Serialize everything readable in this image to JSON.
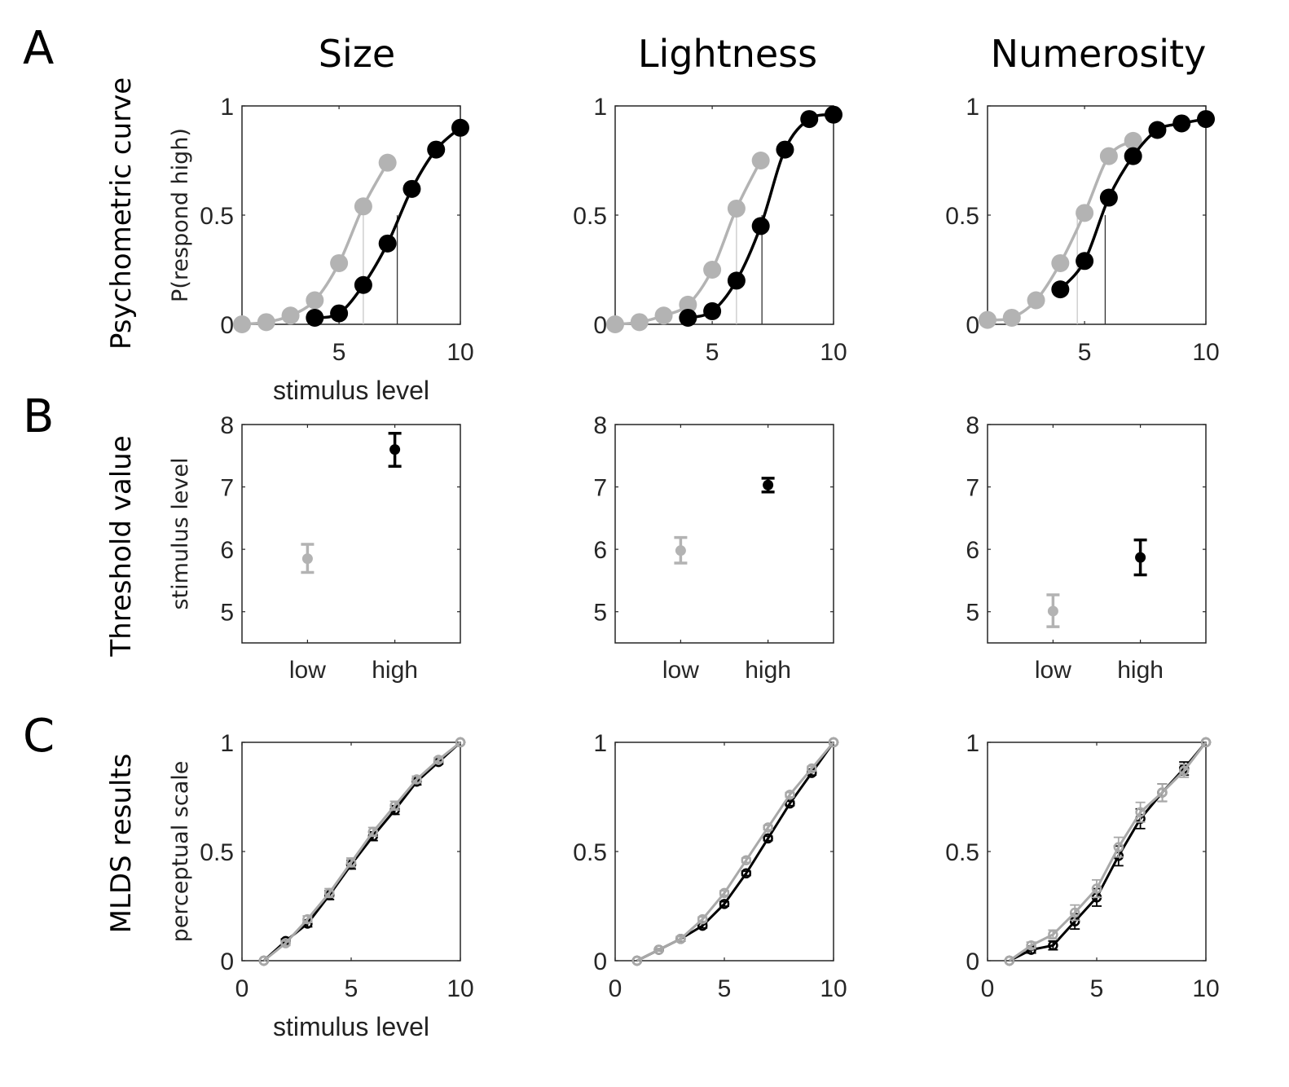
{
  "panel_letters": [
    "A",
    "B",
    "C"
  ],
  "column_titles": [
    "Size",
    "Lightness",
    "Numerosity"
  ],
  "row_titles": [
    "Psychometric curve",
    "Threshold value",
    "MLDS results"
  ],
  "colors": {
    "low": "#b3b3b3",
    "high": "#000000"
  },
  "chart_data": [
    {
      "type": "line",
      "row": "A",
      "title": "Size",
      "xlabel": "stimulus level",
      "ylabel": "P(respond high)",
      "xlim": [
        1,
        10
      ],
      "ylim": [
        0,
        1
      ],
      "xticks": [
        5,
        10
      ],
      "yticks": [
        0,
        0.5,
        1
      ],
      "xtick_labels": [
        "5",
        "10"
      ],
      "ytick_labels": [
        "0",
        "0.5",
        "1"
      ],
      "series": [
        {
          "name": "low",
          "x": [
            1,
            2,
            3,
            4,
            5,
            6,
            7
          ],
          "y": [
            0.0,
            0.01,
            0.04,
            0.11,
            0.28,
            0.54,
            0.74
          ],
          "threshold": 6.0
        },
        {
          "name": "high",
          "x": [
            4,
            5,
            6,
            7,
            8,
            9,
            10
          ],
          "y": [
            0.03,
            0.05,
            0.18,
            0.37,
            0.62,
            0.8,
            0.9
          ],
          "threshold": 7.4
        }
      ]
    },
    {
      "type": "line",
      "row": "A",
      "title": "Lightness",
      "xlabel": "",
      "ylabel": "",
      "xlim": [
        1,
        10
      ],
      "ylim": [
        0,
        1
      ],
      "xticks": [
        5,
        10
      ],
      "yticks": [
        0,
        0.5,
        1
      ],
      "xtick_labels": [
        "5",
        "10"
      ],
      "ytick_labels": [
        "0",
        "0.5",
        "1"
      ],
      "series": [
        {
          "name": "low",
          "x": [
            1,
            2,
            3,
            4,
            5,
            6,
            7
          ],
          "y": [
            0.0,
            0.01,
            0.04,
            0.09,
            0.25,
            0.53,
            0.75
          ],
          "threshold": 6.0
        },
        {
          "name": "high",
          "x": [
            4,
            5,
            6,
            7,
            8,
            9,
            10
          ],
          "y": [
            0.03,
            0.06,
            0.2,
            0.45,
            0.8,
            0.94,
            0.96
          ],
          "threshold": 7.05
        }
      ]
    },
    {
      "type": "line",
      "row": "A",
      "title": "Numerosity",
      "xlabel": "",
      "ylabel": "",
      "xlim": [
        1,
        10
      ],
      "ylim": [
        0,
        1
      ],
      "xticks": [
        5,
        10
      ],
      "yticks": [
        0,
        0.5,
        1
      ],
      "xtick_labels": [
        "5",
        "10"
      ],
      "ytick_labels": [
        "0",
        "0.5",
        "1"
      ],
      "series": [
        {
          "name": "low",
          "x": [
            1,
            2,
            3,
            4,
            5,
            6,
            7
          ],
          "y": [
            0.02,
            0.03,
            0.11,
            0.28,
            0.51,
            0.77,
            0.84
          ],
          "threshold": 4.7
        },
        {
          "name": "high",
          "x": [
            4,
            5,
            6,
            7,
            8,
            9,
            10
          ],
          "y": [
            0.16,
            0.29,
            0.58,
            0.77,
            0.89,
            0.92,
            0.94
          ],
          "threshold": 5.85
        }
      ]
    },
    {
      "type": "scatter",
      "row": "B",
      "title": "Size",
      "xlabel": "",
      "ylabel": "stimulus level",
      "categories": [
        "low",
        "high"
      ],
      "xlim": [
        0.25,
        2.75
      ],
      "ylim": [
        4.5,
        8
      ],
      "yticks": [
        5,
        6,
        7,
        8
      ],
      "ytick_labels": [
        "5",
        "6",
        "7",
        "8"
      ],
      "series": [
        {
          "name": "low",
          "value": 5.85,
          "err_low": 5.63,
          "err_high": 6.08
        },
        {
          "name": "high",
          "value": 7.6,
          "err_low": 7.33,
          "err_high": 7.86
        }
      ]
    },
    {
      "type": "scatter",
      "row": "B",
      "title": "Lightness",
      "xlabel": "",
      "ylabel": "",
      "categories": [
        "low",
        "high"
      ],
      "xlim": [
        0.25,
        2.75
      ],
      "ylim": [
        4.5,
        8
      ],
      "yticks": [
        5,
        6,
        7,
        8
      ],
      "ytick_labels": [
        "5",
        "6",
        "7",
        "8"
      ],
      "series": [
        {
          "name": "low",
          "value": 5.98,
          "err_low": 5.78,
          "err_high": 6.19
        },
        {
          "name": "high",
          "value": 7.03,
          "err_low": 6.92,
          "err_high": 7.14
        }
      ]
    },
    {
      "type": "scatter",
      "row": "B",
      "title": "Numerosity",
      "xlabel": "",
      "ylabel": "",
      "categories": [
        "low",
        "high"
      ],
      "xlim": [
        0.25,
        2.75
      ],
      "ylim": [
        4.5,
        8
      ],
      "yticks": [
        5,
        6,
        7,
        8
      ],
      "ytick_labels": [
        "5",
        "6",
        "7",
        "8"
      ],
      "series": [
        {
          "name": "low",
          "value": 5.01,
          "err_low": 4.76,
          "err_high": 5.27
        },
        {
          "name": "high",
          "value": 5.87,
          "err_low": 5.59,
          "err_high": 6.15
        }
      ]
    },
    {
      "type": "line",
      "row": "C",
      "title": "Size",
      "xlabel": "stimulus level",
      "ylabel": "perceptual scale",
      "xlim": [
        0,
        10
      ],
      "ylim": [
        0,
        1
      ],
      "xticks": [
        0,
        5,
        10
      ],
      "yticks": [
        0,
        0.5,
        1
      ],
      "xtick_labels": [
        "0",
        "5",
        "10"
      ],
      "ytick_labels": [
        "0",
        "0.5",
        "1"
      ],
      "series": [
        {
          "name": "high",
          "x": [
            1,
            2,
            3,
            4,
            5,
            6,
            7,
            8,
            9,
            10
          ],
          "y": [
            0,
            0.09,
            0.17,
            0.3,
            0.44,
            0.57,
            0.69,
            0.82,
            0.91,
            1
          ],
          "err": [
            0,
            0.01,
            0.015,
            0.02,
            0.02,
            0.02,
            0.02,
            0.015,
            0.01,
            0
          ]
        },
        {
          "name": "low",
          "x": [
            1,
            2,
            3,
            4,
            5,
            6,
            7,
            8,
            9,
            10
          ],
          "y": [
            0,
            0.08,
            0.19,
            0.31,
            0.45,
            0.59,
            0.71,
            0.83,
            0.92,
            1
          ],
          "err": [
            0,
            0.01,
            0.015,
            0.02,
            0.02,
            0.02,
            0.02,
            0.015,
            0.01,
            0
          ]
        }
      ]
    },
    {
      "type": "line",
      "row": "C",
      "title": "Lightness",
      "xlabel": "",
      "ylabel": "",
      "xlim": [
        0,
        10
      ],
      "ylim": [
        0,
        1
      ],
      "xticks": [
        0,
        5,
        10
      ],
      "yticks": [
        0,
        0.5,
        1
      ],
      "xtick_labels": [
        "0",
        "5",
        "10"
      ],
      "ytick_labels": [
        "0",
        "0.5",
        "1"
      ],
      "series": [
        {
          "name": "high",
          "x": [
            1,
            2,
            3,
            4,
            5,
            6,
            7,
            8,
            9,
            10
          ],
          "y": [
            0,
            0.05,
            0.1,
            0.16,
            0.26,
            0.4,
            0.56,
            0.72,
            0.86,
            1
          ],
          "err": [
            0,
            0.005,
            0.01,
            0.01,
            0.01,
            0.01,
            0.01,
            0.01,
            0.01,
            0
          ]
        },
        {
          "name": "low",
          "x": [
            1,
            2,
            3,
            4,
            5,
            6,
            7,
            8,
            9,
            10
          ],
          "y": [
            0,
            0.05,
            0.1,
            0.19,
            0.31,
            0.46,
            0.61,
            0.76,
            0.88,
            1
          ],
          "err": [
            0,
            0.005,
            0.01,
            0.01,
            0.01,
            0.01,
            0.01,
            0.01,
            0.01,
            0
          ]
        }
      ]
    },
    {
      "type": "line",
      "row": "C",
      "title": "Numerosity",
      "xlabel": "",
      "ylabel": "",
      "xlim": [
        0,
        10
      ],
      "ylim": [
        0,
        1
      ],
      "xticks": [
        0,
        5,
        10
      ],
      "yticks": [
        0,
        0.5,
        1
      ],
      "xtick_labels": [
        "0",
        "5",
        "10"
      ],
      "ytick_labels": [
        "0",
        "0.5",
        "1"
      ],
      "series": [
        {
          "name": "high",
          "x": [
            1,
            2,
            3,
            4,
            5,
            6,
            7,
            8,
            9,
            10
          ],
          "y": [
            0,
            0.05,
            0.07,
            0.18,
            0.29,
            0.48,
            0.65,
            0.77,
            0.88,
            1
          ],
          "err": [
            0,
            0.015,
            0.02,
            0.035,
            0.04,
            0.045,
            0.045,
            0.04,
            0.03,
            0
          ]
        },
        {
          "name": "low",
          "x": [
            1,
            2,
            3,
            4,
            5,
            6,
            7,
            8,
            9,
            10
          ],
          "y": [
            0,
            0.07,
            0.12,
            0.22,
            0.33,
            0.52,
            0.68,
            0.77,
            0.87,
            1
          ],
          "err": [
            0,
            0.015,
            0.02,
            0.035,
            0.04,
            0.045,
            0.045,
            0.04,
            0.03,
            0
          ]
        }
      ]
    }
  ]
}
